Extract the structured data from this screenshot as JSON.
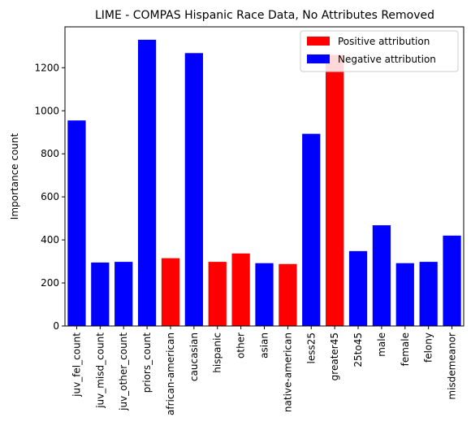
{
  "chart_data": {
    "type": "bar",
    "title": "LIME - COMPAS Hispanic Race Data, No Attributes Removed",
    "xlabel": "",
    "ylabel": "Importance count",
    "ylim": [
      0,
      1390
    ],
    "yticks": [
      0,
      200,
      400,
      600,
      800,
      1000,
      1200
    ],
    "grid": false,
    "legend_position": "top-right",
    "colors": {
      "positive": "#ff0000",
      "negative": "#0000ff"
    },
    "legend": [
      {
        "label": "Positive attribution",
        "sign": "positive"
      },
      {
        "label": "Negative attribution",
        "sign": "negative"
      }
    ],
    "categories": [
      "juv_fel_count",
      "juv_misd_count",
      "juv_other_count",
      "priors_count",
      "african-american",
      "caucasian",
      "hispanic",
      "other",
      "asian",
      "native-american",
      "less25",
      "greater45",
      "25to45",
      "male",
      "female",
      "felony",
      "misdemeanor"
    ],
    "values": [
      955,
      295,
      298,
      1330,
      315,
      1268,
      298,
      337,
      292,
      288,
      893,
      1260,
      348,
      468,
      292,
      298,
      420
    ],
    "signs": [
      "negative",
      "negative",
      "negative",
      "negative",
      "positive",
      "negative",
      "positive",
      "positive",
      "negative",
      "positive",
      "negative",
      "positive",
      "negative",
      "negative",
      "negative",
      "negative",
      "negative"
    ]
  }
}
